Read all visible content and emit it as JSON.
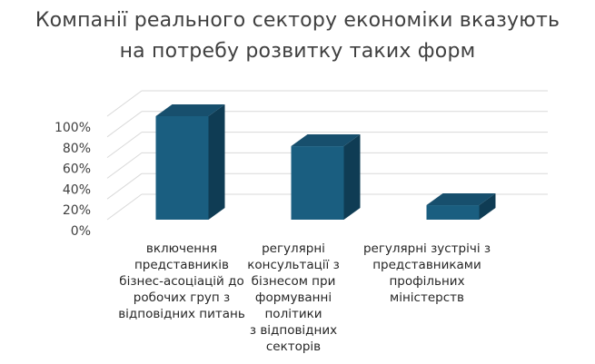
{
  "chart_data": {
    "type": "bar",
    "title_lines": [
      "Компанії реального сектору економіки вказують",
      "на потребу розвитку таких форм"
    ],
    "categories": [
      "включення представників бізнес-асоціацій до робочих груп з відповідних питань",
      "регулярні консультації з бізнесом при формуванні політики з відповідних секторів",
      "регулярні зустрічі з представниками профільних міністерств"
    ],
    "category_lines": [
      [
        "включення",
        "представників",
        "бізнес-асоціацій до",
        "робочих груп з",
        "відповідних питань"
      ],
      [
        "регулярні",
        "консультації з",
        "бізнесом при",
        "формуванні політики",
        "з відповідних",
        "секторів"
      ],
      [
        "регулярні зустрічі з",
        "представниками",
        "профільних",
        "міністерств"
      ]
    ],
    "values": [
      100,
      71,
      14
    ],
    "ylim": [
      0,
      100
    ],
    "yticks": [
      "0%",
      "20%",
      "40%",
      "60%",
      "80%",
      "100%"
    ],
    "grid": true,
    "bar_color": "#1a5e80",
    "bar_side_color": "#0f3c54",
    "bar_top_color": "#174f6d",
    "grid_color": "#d9d9d9",
    "text_color": "#404040"
  }
}
